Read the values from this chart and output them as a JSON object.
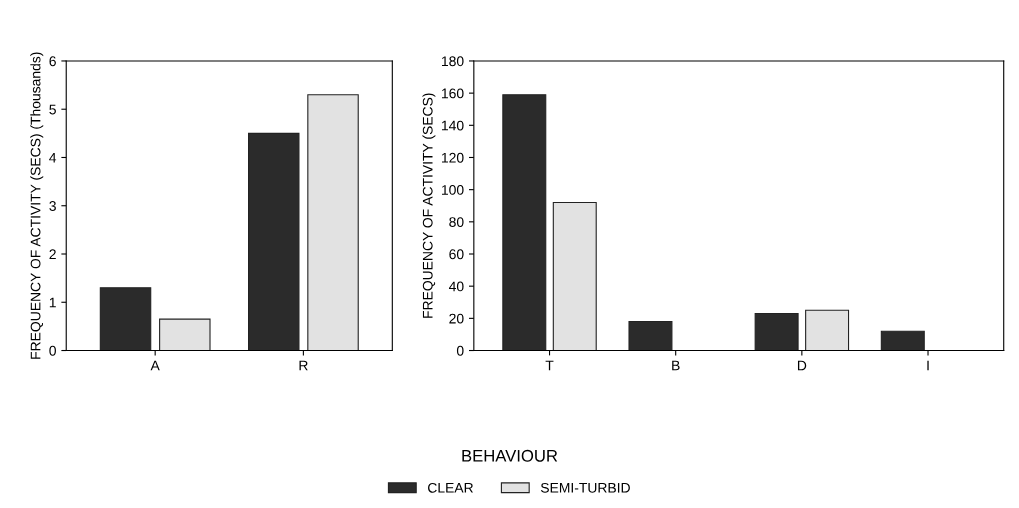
{
  "chart_data": [
    {
      "type": "bar",
      "ylabel": "FREQUENCY OF ACTIVITY (SECS) (Thousands)",
      "categories": [
        "A",
        "R"
      ],
      "ylim": [
        0,
        6
      ],
      "yticks": [
        0,
        1,
        2,
        3,
        4,
        5,
        6
      ],
      "grid": false,
      "legend": "bottom",
      "series": [
        {
          "name": "CLEAR",
          "color": "#2b2b2b",
          "values": [
            1.3,
            4.5
          ]
        },
        {
          "name": "SEMI-TURBID",
          "color": "#e2e2e2",
          "values": [
            0.65,
            5.3
          ]
        }
      ]
    },
    {
      "type": "bar",
      "ylabel": "FREQUENCY OF ACTIVITY (SECS)",
      "xlabel": "BEHAVIOUR",
      "categories": [
        "T",
        "B",
        "D",
        "I"
      ],
      "ylim": [
        0,
        180
      ],
      "yticks": [
        0,
        20,
        40,
        60,
        80,
        100,
        120,
        140,
        160,
        180
      ],
      "grid": false,
      "series": [
        {
          "color": "#2b2b2b",
          "values": [
            159,
            18,
            23,
            12
          ]
        },
        {
          "color": "#e2e2e2",
          "values": [
            92,
            null,
            25,
            null
          ]
        }
      ]
    }
  ]
}
